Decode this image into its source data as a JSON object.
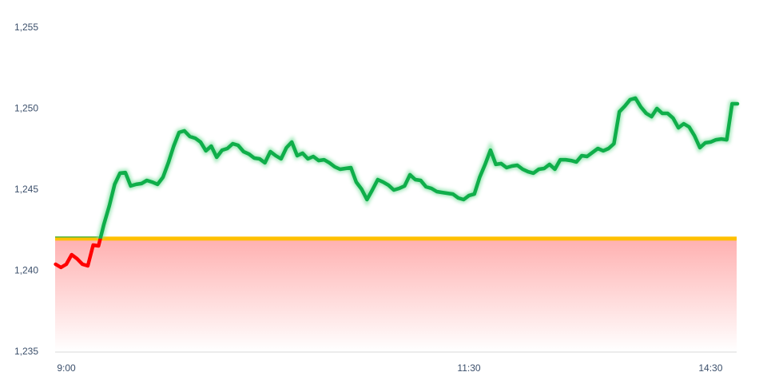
{
  "chart_data": {
    "type": "line",
    "title": "",
    "xlabel": "",
    "ylabel": "",
    "ylim": [
      1235,
      1255
    ],
    "y_ticks": [
      "1,235",
      "1,240",
      "1,245",
      "1,250",
      "1,255"
    ],
    "y_tick_values": [
      1235,
      1240,
      1245,
      1250,
      1255
    ],
    "x_ticks": [
      "9:00",
      "11:30",
      "14:30"
    ],
    "x_tick_times": [
      "09:00",
      "11:30",
      "14:30"
    ],
    "lunch_break": [
      "11:30",
      "13:00"
    ],
    "baseline": 1241.95,
    "interval_minutes": 2,
    "grid": false,
    "colors": {
      "up": "#0fae4a",
      "down": "#ff0000",
      "baseline": "#ffc000",
      "fill_below": "#ffb0b0",
      "axis": "#d9d9d9"
    },
    "segments": [
      {
        "start": "08:56",
        "values": [
          1240.37,
          1240.17,
          1240.37,
          1240.96,
          1240.71,
          1240.37,
          1240.27,
          1241.55,
          1241.5,
          1242.83,
          1243.97,
          1245.3,
          1245.99,
          1246.03,
          1245.2,
          1245.3,
          1245.35,
          1245.54,
          1245.44,
          1245.3,
          1245.74,
          1246.63,
          1247.66,
          1248.5,
          1248.6,
          1248.25,
          1248.15,
          1247.91,
          1247.37,
          1247.66,
          1246.97,
          1247.41,
          1247.51,
          1247.81,
          1247.71,
          1247.32,
          1247.17,
          1246.92,
          1246.87,
          1246.63,
          1247.32,
          1247.07,
          1246.87,
          1247.56,
          1247.91,
          1247.07,
          1247.22,
          1246.87,
          1247.02,
          1246.77,
          1246.82,
          1246.63,
          1246.38,
          1246.23,
          1246.28,
          1246.33,
          1245.44,
          1245.0,
          1244.36,
          1244.95,
          1245.59,
          1245.44,
          1245.25,
          1244.95,
          1245.05,
          1245.2,
          1245.89,
          1245.59,
          1245.54,
          1245.15,
          1245.05,
          1244.85,
          1244.8,
          1244.75,
          1244.7,
          1244.46,
          1244.36,
          1244.61
        ]
      },
      {
        "start": "13:02",
        "values": [
          1244.7,
          1245.74,
          1246.53,
          1247.41,
          1246.53,
          1246.58,
          1246.33,
          1246.43,
          1246.48,
          1246.23,
          1246.08,
          1245.99,
          1246.23,
          1246.28,
          1246.53,
          1246.23,
          1246.82,
          1246.82,
          1246.77,
          1246.68,
          1247.07,
          1247.02,
          1247.27,
          1247.51,
          1247.37,
          1247.51,
          1247.81,
          1249.78,
          1250.12,
          1250.52,
          1250.62,
          1250.08,
          1249.68,
          1249.48,
          1249.98,
          1249.68,
          1249.68,
          1249.39,
          1248.79,
          1249.04,
          1248.84,
          1248.3,
          1247.56,
          1247.86,
          1247.91,
          1248.05,
          1248.1,
          1248.05,
          1250.27,
          1250.27
        ]
      }
    ]
  }
}
